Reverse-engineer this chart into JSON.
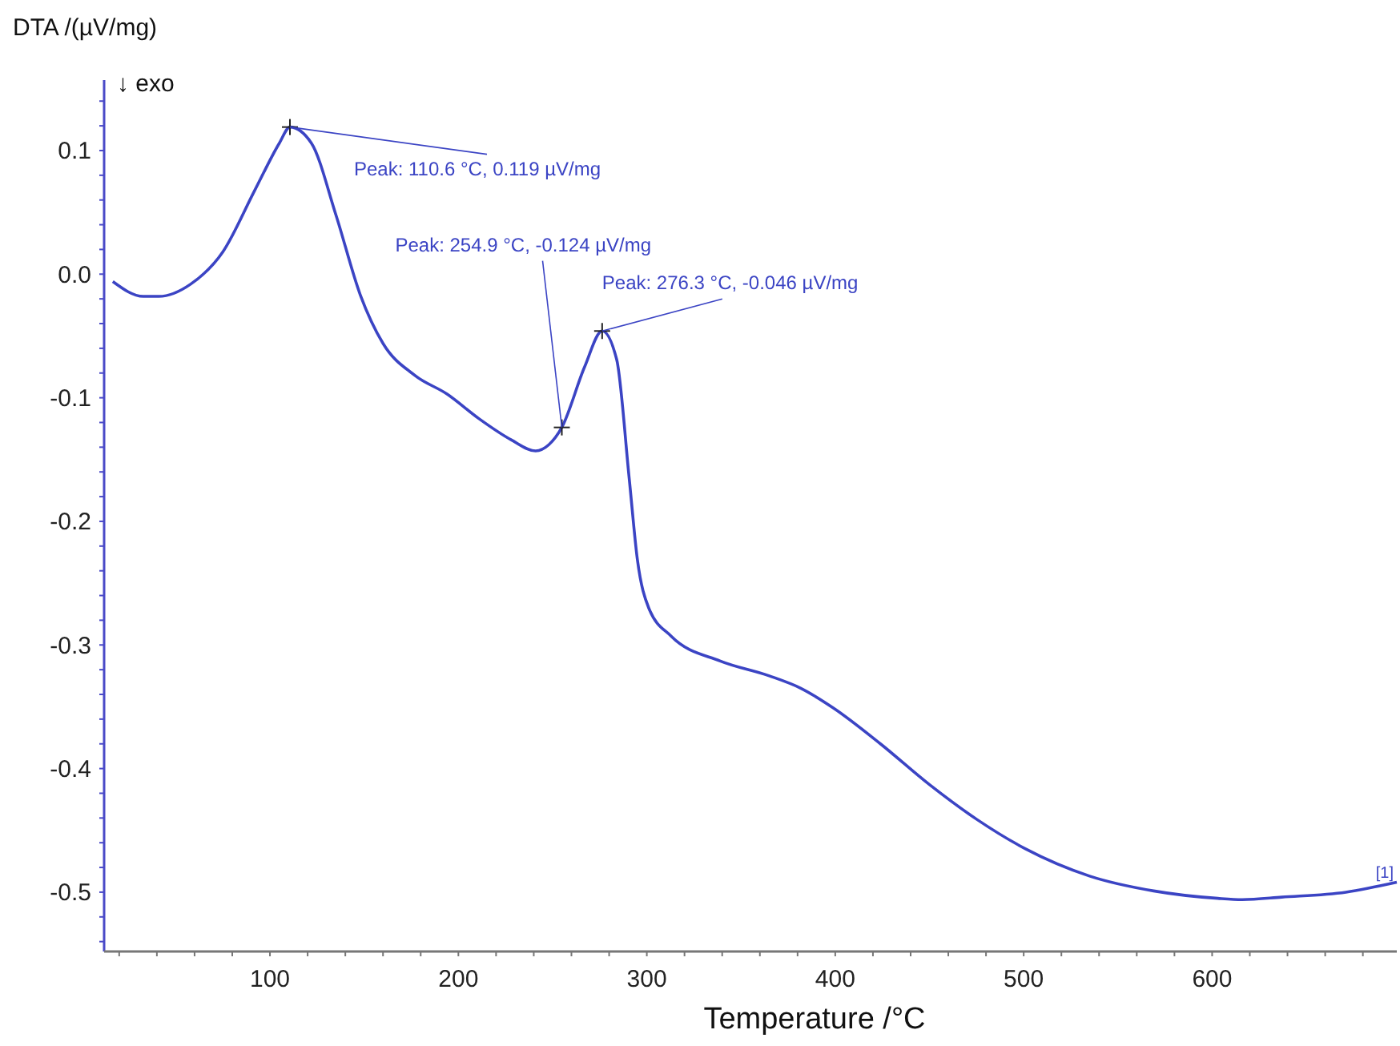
{
  "chart_data": {
    "type": "line",
    "xlabel": "Temperature /°C",
    "ylabel": "DTA /(µV/mg)",
    "x": [
      16.6,
      32.8,
      41,
      58,
      75,
      92,
      105,
      110.6,
      122,
      135,
      148,
      160,
      177,
      194,
      211,
      228,
      241,
      248,
      254.9,
      267,
      276.3,
      284,
      290.7,
      295,
      301,
      313,
      339,
      365,
      381.7,
      399,
      424,
      450,
      475,
      501,
      535,
      569,
      603,
      616,
      637,
      671,
      698
    ],
    "series": [
      {
        "color": "#3b44c4",
        "values": [
          -0.006,
          -0.018,
          -0.018,
          -0.008,
          0.018,
          0.068,
          0.106,
          0.119,
          0.106,
          0.048,
          -0.017,
          -0.056,
          -0.082,
          -0.097,
          -0.117,
          -0.134,
          -0.143,
          -0.138,
          -0.124,
          -0.075,
          -0.046,
          -0.069,
          -0.166,
          -0.231,
          -0.27,
          -0.293,
          -0.313,
          -0.325,
          -0.335,
          -0.351,
          -0.38,
          -0.413,
          -0.441,
          -0.465,
          -0.487,
          -0.499,
          -0.505,
          -0.506,
          -0.504,
          -0.5,
          -0.492
        ]
      }
    ],
    "xlim": [
      12,
      698
    ],
    "xticks": [
      {
        "value": 20,
        "label": null
      },
      {
        "value": 40,
        "label": null
      },
      {
        "value": 60,
        "label": null
      },
      {
        "value": 80,
        "label": null
      },
      100,
      {
        "value": 120,
        "label": null
      },
      {
        "value": 140,
        "label": null
      },
      {
        "value": 160,
        "label": null
      },
      {
        "value": 180,
        "label": null
      },
      200,
      {
        "value": 220,
        "label": null
      },
      {
        "value": 240,
        "label": null
      },
      {
        "value": 260,
        "label": null
      },
      {
        "value": 280,
        "label": null
      },
      300,
      {
        "value": 320,
        "label": null
      },
      {
        "value": 340,
        "label": null
      },
      {
        "value": 360,
        "label": null
      },
      {
        "value": 380,
        "label": null
      },
      400,
      {
        "value": 420,
        "label": null
      },
      {
        "value": 440,
        "label": null
      },
      {
        "value": 460,
        "label": null
      },
      {
        "value": 480,
        "label": null
      },
      500,
      {
        "value": 520,
        "label": null
      },
      {
        "value": 540,
        "label": null
      },
      {
        "value": 560,
        "label": null
      },
      {
        "value": 580,
        "label": null
      },
      600,
      {
        "value": 620,
        "label": null
      },
      {
        "value": 640,
        "label": null
      },
      {
        "value": 660,
        "label": null
      },
      {
        "value": 680,
        "label": null
      }
    ],
    "ylim": [
      -0.548,
      0.157
    ],
    "yticks": [
      {
        "value": -0.54,
        "label": null
      },
      {
        "value": -0.52,
        "label": null
      },
      -0.5,
      {
        "value": -0.48,
        "label": null
      },
      {
        "value": -0.46,
        "label": null
      },
      {
        "value": -0.44,
        "label": null
      },
      {
        "value": -0.42,
        "label": null
      },
      -0.4,
      {
        "value": -0.38,
        "label": null
      },
      {
        "value": -0.36,
        "label": null
      },
      {
        "value": -0.34,
        "label": null
      },
      {
        "value": -0.32,
        "label": null
      },
      -0.3,
      {
        "value": -0.28,
        "label": null
      },
      {
        "value": -0.26,
        "label": null
      },
      {
        "value": -0.24,
        "label": null
      },
      {
        "value": -0.22,
        "label": null
      },
      -0.2,
      {
        "value": -0.18,
        "label": null
      },
      {
        "value": -0.16,
        "label": null
      },
      {
        "value": -0.14,
        "label": null
      },
      {
        "value": -0.12,
        "label": null
      },
      -0.1,
      {
        "value": -0.08,
        "label": null
      },
      {
        "value": -0.06,
        "label": null
      },
      {
        "value": -0.04,
        "label": null
      },
      {
        "value": -0.02,
        "label": null
      },
      {
        "value": 0,
        "label": "0.0"
      },
      {
        "value": 0.02,
        "label": null
      },
      {
        "value": 0.04,
        "label": null
      },
      {
        "value": 0.06,
        "label": null
      },
      {
        "value": 0.08,
        "label": null
      },
      0.1,
      {
        "value": 0.12,
        "label": null
      },
      {
        "value": 0.14,
        "label": null
      }
    ],
    "grid": false,
    "marker": "none",
    "line_style": "solid",
    "annotations": [
      {
        "text": "Peak: 110.6 °C, 0.119 µV/mg",
        "x": 110.6,
        "y": 0.119
      },
      {
        "text": "Peak: 254.9 °C, -0.124 µV/mg",
        "x": 254.9,
        "y": -0.124
      },
      {
        "text": "Peak: 276.3 °C, -0.046 µV/mg",
        "x": 276.3,
        "y": -0.046
      },
      "↓ exo",
      "[1]"
    ]
  }
}
